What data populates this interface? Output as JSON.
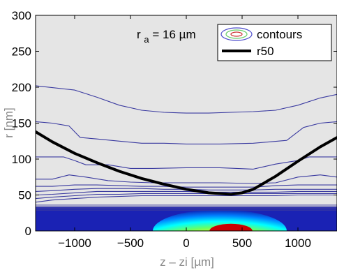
{
  "chart_data": {
    "type": "contour",
    "xlabel": "z – zi [µm]",
    "ylabel": "r [nm]",
    "xlim": [
      -1350,
      1350
    ],
    "ylim": [
      0,
      300
    ],
    "xticks": [
      -1000,
      -500,
      0,
      500,
      1000
    ],
    "yticks": [
      0,
      50,
      100,
      150,
      200,
      250,
      300
    ],
    "annotation": {
      "main": "r",
      "sub": "a",
      "rest": " = 16 µm"
    },
    "legend": {
      "placement": "top-right",
      "entries": [
        {
          "label": "contours",
          "style": "concentric-ellipses"
        },
        {
          "label": "r50",
          "style": "thick-black-line"
        }
      ]
    },
    "grid": false,
    "background_color": "#e5e5e5",
    "contour_line_color": "#3a3aa0",
    "series": [
      {
        "name": "r50",
        "color": "#000000",
        "x": [
          -1350,
          -1200,
          -1000,
          -800,
          -600,
          -400,
          -200,
          0,
          200,
          400,
          500,
          600,
          800,
          1000,
          1200,
          1350
        ],
        "y": [
          138,
          124,
          108,
          95,
          83,
          73,
          65,
          58,
          53,
          51,
          53,
          58,
          76,
          97,
          117,
          130
        ]
      }
    ],
    "contour_levels": [
      {
        "x": [
          -1350,
          -1000,
          -800,
          -600,
          -400,
          -200,
          0,
          200,
          400,
          600,
          800,
          1000,
          1200,
          1350
        ],
        "y": [
          202,
          196,
          186,
          175,
          168,
          165,
          164,
          164,
          165,
          166,
          168,
          175,
          185,
          190
        ]
      },
      {
        "x": [
          -1350,
          -1200,
          -1050,
          -950,
          -800,
          -600,
          -400,
          -200,
          0,
          300,
          600,
          900,
          1050,
          1200,
          1350
        ],
        "y": [
          152,
          150,
          146,
          130,
          128,
          125,
          122,
          122,
          121,
          121,
          122,
          126,
          144,
          150,
          152
        ]
      },
      {
        "x": [
          -1350,
          -1100,
          -1000,
          -900,
          -700,
          -500,
          -300,
          0,
          300,
          600,
          800,
          1000,
          1100,
          1350
        ],
        "y": [
          103,
          103,
          98,
          92,
          92,
          87,
          87,
          88,
          88,
          86,
          93,
          98,
          103,
          103
        ]
      },
      {
        "x": [
          -1350,
          -1200,
          -1050,
          -900,
          -700,
          -500,
          -300,
          0,
          300,
          600,
          800,
          1000,
          1200,
          1350
        ],
        "y": [
          72,
          72,
          78,
          75,
          70,
          68,
          67,
          67,
          67,
          66,
          67,
          75,
          78,
          75
        ]
      },
      {
        "x": [
          -1350,
          -1200,
          -1000,
          -800,
          -600,
          -400,
          -200,
          0,
          200,
          400,
          600,
          800,
          1000,
          1200,
          1350
        ],
        "y": [
          62,
          62,
          64,
          64,
          63,
          62,
          62,
          61,
          61,
          61,
          61,
          63,
          64,
          64,
          64
        ]
      },
      {
        "x": [
          -1350,
          -1200,
          -1000,
          -800,
          -600,
          -400,
          -200,
          0,
          200,
          400,
          600,
          800,
          1000,
          1200,
          1350
        ],
        "y": [
          55,
          56,
          58,
          59,
          59,
          59,
          58,
          58,
          57,
          57,
          57,
          58,
          58,
          58,
          58
        ]
      },
      {
        "x": [
          -1350,
          -1200,
          -1000,
          -800,
          -600,
          -400,
          -200,
          0,
          200,
          400,
          600,
          800,
          1000,
          1200,
          1350
        ],
        "y": [
          50,
          51,
          53,
          55,
          55,
          55,
          55,
          55,
          54,
          54,
          54,
          54,
          55,
          55,
          55
        ]
      },
      {
        "x": [
          -1350,
          -1200,
          -1000,
          -800,
          -600,
          -400,
          -200,
          0,
          200,
          400,
          600,
          800,
          1000,
          1200,
          1350
        ],
        "y": [
          45,
          47,
          49,
          51,
          51,
          52,
          52,
          52,
          52,
          52,
          52,
          52,
          52,
          52,
          52
        ]
      },
      {
        "x": [
          -1350,
          -1200,
          -1000,
          -800,
          -600,
          -400,
          -200,
          0,
          200,
          400,
          600,
          800,
          1000,
          1200,
          1350
        ],
        "y": [
          40,
          43,
          45,
          47,
          48,
          49,
          49,
          49,
          49,
          49,
          49,
          49,
          50,
          50,
          50
        ]
      }
    ],
    "heatmap": {
      "colormap": "jet",
      "band_top": 33,
      "center_x": 300,
      "core_height": 10,
      "core_width": 600
    }
  }
}
